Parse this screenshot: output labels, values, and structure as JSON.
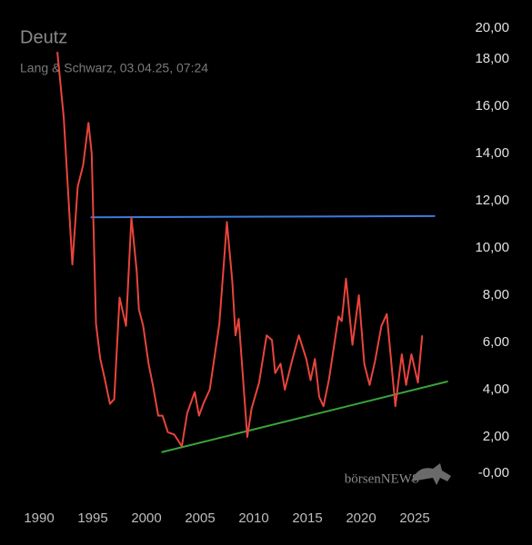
{
  "chart_data": {
    "type": "line",
    "title": "Deutz",
    "subtitle": "Lang & Schwarz, 03.04.25, 07:24",
    "watermark": "börsenNEWS",
    "xlim": [
      1988,
      2030
    ],
    "ylim": [
      0,
      20
    ],
    "xticks": [
      1990,
      1995,
      2000,
      2005,
      2010,
      2015,
      2020,
      2025
    ],
    "yticks": [
      {
        "value": 0,
        "label": "-0,00"
      },
      {
        "value": 2,
        "label": "2,00"
      },
      {
        "value": 4,
        "label": "4,00"
      },
      {
        "value": 6,
        "label": "6,00"
      },
      {
        "value": 8,
        "label": "8,00"
      },
      {
        "value": 10,
        "label": "10,00"
      },
      {
        "value": 12,
        "label": "12,00"
      },
      {
        "value": 14,
        "label": "14,00"
      },
      {
        "value": 16,
        "label": "16,00"
      },
      {
        "value": 18,
        "label": "18,00"
      },
      {
        "value": 20,
        "label": "20,00"
      }
    ],
    "color": "#e8453c",
    "x": [
      1991.7,
      1992.3,
      1993.1,
      1993.6,
      1994.1,
      1994.6,
      1994.9,
      1995.3,
      1995.7,
      1996.1,
      1996.6,
      1997.0,
      1997.5,
      1998.1,
      1998.6,
      1999.1,
      1999.3,
      1999.7,
      2000.2,
      2000.6,
      2001.1,
      2001.5,
      2002.0,
      2002.6,
      2003.3,
      2003.8,
      2004.5,
      2004.9,
      2005.3,
      2005.9,
      2006.8,
      2007.5,
      2008.0,
      2008.3,
      2008.6,
      2009.4,
      2009.8,
      2010.5,
      2011.2,
      2011.7,
      2012.0,
      2012.5,
      2012.9,
      2013.5,
      2014.2,
      2014.9,
      2015.3,
      2015.7,
      2016.1,
      2016.5,
      2017.0,
      2017.9,
      2018.2,
      2018.6,
      2019.2,
      2019.8,
      2020.3,
      2020.8,
      2021.3,
      2021.9,
      2022.4,
      2023.2,
      2023.8,
      2024.2,
      2024.7,
      2025.3,
      2025.7
    ],
    "values": [
      18.3,
      15.5,
      9.3,
      12.6,
      13.5,
      15.3,
      14.0,
      6.8,
      5.3,
      4.5,
      3.4,
      3.6,
      7.9,
      6.7,
      11.3,
      9.0,
      7.4,
      6.7,
      5.1,
      4.2,
      2.9,
      2.9,
      2.2,
      2.1,
      1.6,
      3.0,
      3.9,
      2.9,
      3.4,
      4.0,
      6.8,
      11.1,
      8.6,
      6.3,
      7.0,
      2.0,
      3.2,
      4.3,
      6.3,
      6.1,
      4.7,
      5.1,
      4.0,
      5.1,
      6.3,
      5.3,
      4.4,
      5.3,
      3.7,
      3.3,
      4.4,
      7.1,
      6.9,
      8.7,
      5.9,
      8.0,
      5.1,
      4.2,
      5.2,
      6.7,
      7.2,
      3.3,
      5.5,
      4.2,
      5.5,
      4.3,
      6.3
    ],
    "trendlines": [
      {
        "color": "#3a7be0",
        "x": [
          1994.8,
          2026.9
        ],
        "values": [
          11.3,
          11.35
        ]
      },
      {
        "color": "#3aa33a",
        "x": [
          2001.4,
          2028.1
        ],
        "values": [
          1.35,
          4.35
        ]
      }
    ]
  }
}
